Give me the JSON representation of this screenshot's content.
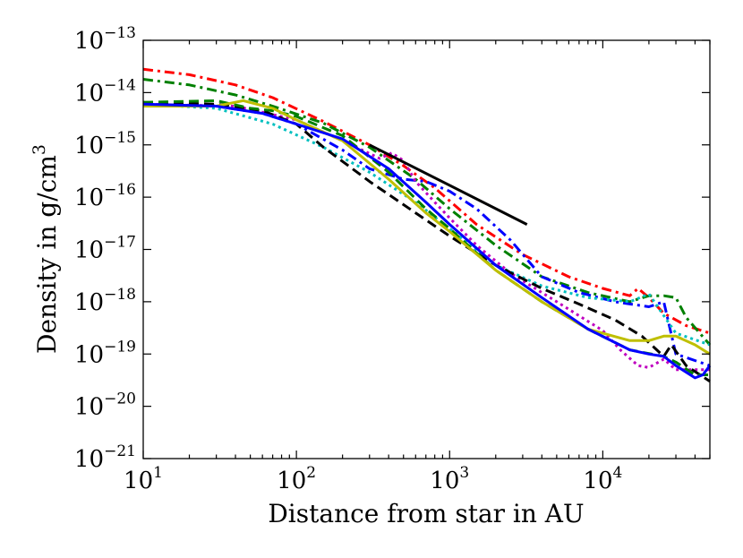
{
  "chart_data": {
    "type": "line",
    "title": "",
    "xlabel": "Distance from star in AU",
    "ylabel": "Density in g/cm",
    "ylabel_superscript": "3",
    "xscale": "log",
    "yscale": "log",
    "xlim": [
      10,
      50000
    ],
    "ylim": [
      1e-21,
      1e-13
    ],
    "grid": false,
    "legend": "none",
    "x_ticks": [
      {
        "value": 10,
        "base": "10",
        "exp": "1"
      },
      {
        "value": 100,
        "base": "10",
        "exp": "2"
      },
      {
        "value": 1000,
        "base": "10",
        "exp": "3"
      },
      {
        "value": 10000,
        "base": "10",
        "exp": "4"
      }
    ],
    "y_ticks": [
      {
        "value": 1e-21,
        "base": "10",
        "exp": "−21"
      },
      {
        "value": 1e-20,
        "base": "10",
        "exp": "−20"
      },
      {
        "value": 1e-19,
        "base": "10",
        "exp": "−19"
      },
      {
        "value": 1e-18,
        "base": "10",
        "exp": "−18"
      },
      {
        "value": 1e-17,
        "base": "10",
        "exp": "−17"
      },
      {
        "value": 1e-16,
        "base": "10",
        "exp": "−16"
      },
      {
        "value": 1e-15,
        "base": "10",
        "exp": "−15"
      },
      {
        "value": 1e-14,
        "base": "10",
        "exp": "−14"
      },
      {
        "value": 1e-13,
        "base": "10",
        "exp": "−13"
      }
    ],
    "series": [
      {
        "name": "red-dashdot",
        "color": "#ff0000",
        "style": "dashdot",
        "x": [
          10,
          20,
          40,
          70,
          150,
          300,
          500,
          800,
          1500,
          3000,
          6000,
          10000,
          15000,
          17000,
          20000,
          25000,
          35000,
          50000
        ],
        "y": [
          2.8e-14,
          2.2e-14,
          1.4e-14,
          8e-15,
          2.8e-15,
          1e-15,
          4e-16,
          1.5e-16,
          3e-17,
          8e-18,
          3e-18,
          1.8e-18,
          1.3e-18,
          1.8e-18,
          1.2e-18,
          6e-19,
          3.5e-19,
          2.5e-19
        ]
      },
      {
        "name": "green-dashdot",
        "color": "#008000",
        "style": "dashdot",
        "x": [
          10,
          20,
          40,
          70,
          150,
          300,
          600,
          1000,
          2000,
          4000,
          8000,
          15000,
          20000,
          25000,
          30000,
          35000,
          50000
        ],
        "y": [
          1.8e-14,
          1.4e-14,
          9e-15,
          5.5e-15,
          2.6e-15,
          9e-16,
          2.2e-16,
          6e-17,
          1.2e-17,
          3e-18,
          1.5e-18,
          1e-18,
          1.3e-18,
          1.3e-18,
          1.2e-18,
          5e-19,
          1.5e-19
        ]
      },
      {
        "name": "blue-dashdot",
        "color": "#0000ff",
        "style": "dashdot",
        "x": [
          10,
          30,
          60,
          100,
          200,
          300,
          500,
          700,
          1000,
          1500,
          2500,
          4000,
          7000,
          12000,
          20000,
          25000,
          30000,
          50000
        ],
        "y": [
          6e-15,
          5.5e-15,
          4e-15,
          2.5e-15,
          8e-16,
          3.5e-16,
          2.2e-16,
          2e-16,
          1.3e-16,
          6e-17,
          1.5e-17,
          3e-18,
          1.5e-18,
          1e-18,
          8e-19,
          1e-18,
          1e-19,
          6e-20
        ]
      },
      {
        "name": "cyan-dotted",
        "color": "#00bfbf",
        "style": "dotted",
        "x": [
          10,
          30,
          70,
          150,
          300,
          600,
          1000,
          2000,
          4000,
          8000,
          15000,
          20000,
          30000,
          50000
        ],
        "y": [
          6e-15,
          5e-15,
          2.5e-15,
          9e-16,
          3e-16,
          8e-17,
          2.5e-17,
          5e-18,
          2e-18,
          1.2e-18,
          1e-18,
          1.4e-18,
          2.5e-19,
          1.5e-19
        ]
      },
      {
        "name": "magenta-dotted",
        "color": "#bf00bf",
        "style": "dotted",
        "x": [
          10,
          40,
          100,
          200,
          350,
          420,
          500,
          600,
          800,
          1000,
          1500,
          2500,
          5000,
          10000,
          13000,
          17000,
          20000,
          25000,
          30000,
          50000
        ],
        "y": [
          6e-15,
          5.5e-15,
          3e-15,
          1.2e-15,
          5.5e-16,
          7e-16,
          5e-16,
          2e-16,
          8e-17,
          4e-17,
          1.2e-17,
          3.5e-18,
          1e-18,
          2.8e-19,
          1.2e-19,
          6e-20,
          5.5e-20,
          8e-20,
          5e-20,
          5e-20
        ]
      },
      {
        "name": "black-dashed",
        "color": "#000000",
        "style": "dashed",
        "x": [
          10,
          30,
          60,
          100,
          150,
          300,
          600,
          1000,
          2000,
          4000,
          7000,
          12000,
          18000,
          25000,
          28000,
          35000,
          50000
        ],
        "y": [
          6.5e-15,
          6e-15,
          4.5e-15,
          2.5e-15,
          9e-16,
          2e-16,
          5e-17,
          1.8e-17,
          5e-18,
          1.8e-18,
          9e-19,
          4.5e-19,
          2.2e-19,
          9e-20,
          1.5e-19,
          6e-20,
          3e-20
        ]
      },
      {
        "name": "green-dashed",
        "color": "#008000",
        "style": "dashed",
        "x": [
          10,
          30,
          50,
          70,
          100,
          200,
          400,
          700,
          1000,
          2000,
          4000,
          8000,
          15000,
          25000,
          30000,
          40000,
          50000
        ],
        "y": [
          6.5e-15,
          7e-15,
          5e-15,
          4.5e-15,
          3.5e-15,
          1.5e-15,
          3e-16,
          6e-17,
          2.5e-17,
          4e-18,
          1e-18,
          3e-19,
          1.2e-19,
          9e-20,
          7e-20,
          4e-20,
          4e-20
        ]
      },
      {
        "name": "olive-solid",
        "color": "#bfbf00",
        "style": "solid",
        "x": [
          10,
          30,
          45,
          70,
          100,
          200,
          400,
          700,
          1000,
          2000,
          4000,
          8000,
          15000,
          20000,
          25000,
          30000,
          40000,
          50000
        ],
        "y": [
          5.5e-15,
          5.5e-15,
          7e-15,
          5e-15,
          3e-15,
          1.2e-15,
          2.2e-16,
          5e-17,
          2.2e-17,
          4e-18,
          1e-18,
          3e-19,
          1.8e-19,
          1.8e-19,
          2.2e-19,
          2.2e-19,
          1.5e-19,
          1e-19
        ]
      },
      {
        "name": "blue-solid",
        "color": "#0000ff",
        "style": "solid",
        "x": [
          10,
          30,
          60,
          100,
          200,
          400,
          700,
          1000,
          2000,
          4000,
          8000,
          15000,
          20000,
          25000,
          30000,
          40000,
          45000,
          50000
        ],
        "y": [
          6e-15,
          5.5e-15,
          4e-15,
          2.5e-15,
          1.3e-15,
          3.5e-16,
          8e-17,
          3e-17,
          5e-18,
          1.2e-18,
          3e-19,
          1.2e-19,
          1e-19,
          9e-20,
          6e-20,
          3.5e-20,
          4e-20,
          6e-20
        ]
      },
      {
        "name": "reference-slope",
        "color": "#000000",
        "style": "solid",
        "x": [
          300,
          3200
        ],
        "y": [
          1e-15,
          3e-17
        ]
      }
    ]
  }
}
